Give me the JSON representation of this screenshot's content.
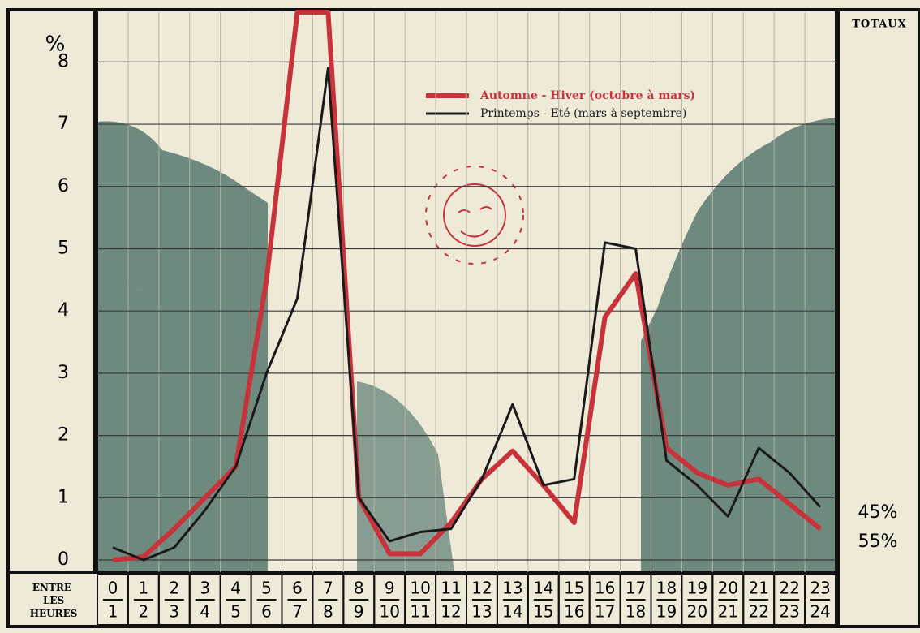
{
  "chart_data": {
    "type": "line",
    "y_label": "%",
    "x_label": "ENTRE LES HEURES",
    "totals_title": "TOTAUX",
    "categories": [
      {
        "from": "0",
        "to": "1"
      },
      {
        "from": "1",
        "to": "2"
      },
      {
        "from": "2",
        "to": "3"
      },
      {
        "from": "3",
        "to": "4"
      },
      {
        "from": "4",
        "to": "5"
      },
      {
        "from": "5",
        "to": "6"
      },
      {
        "from": "6",
        "to": "7"
      },
      {
        "from": "7",
        "to": "8"
      },
      {
        "from": "8",
        "to": "9"
      },
      {
        "from": "9",
        "to": "10"
      },
      {
        "from": "10",
        "to": "11"
      },
      {
        "from": "11",
        "to": "12"
      },
      {
        "from": "12",
        "to": "13"
      },
      {
        "from": "13",
        "to": "14"
      },
      {
        "from": "14",
        "to": "15"
      },
      {
        "from": "15",
        "to": "16"
      },
      {
        "from": "16",
        "to": "17"
      },
      {
        "from": "17",
        "to": "18"
      },
      {
        "from": "18",
        "to": "19"
      },
      {
        "from": "19",
        "to": "20"
      },
      {
        "from": "20",
        "to": "21"
      },
      {
        "from": "21",
        "to": "22"
      },
      {
        "from": "22",
        "to": "23"
      },
      {
        "from": "23",
        "to": "24"
      }
    ],
    "series": [
      {
        "name": "Automne - Hiver (octobre à mars)",
        "color": "#c8323a",
        "width": 6,
        "values": [
          0,
          0.05,
          0.5,
          1.0,
          1.5,
          4.5,
          8.8,
          8.8,
          1.0,
          0.1,
          0.1,
          0.6,
          1.3,
          1.75,
          1.2,
          0.6,
          3.9,
          4.6,
          1.8,
          1.4,
          1.2,
          1.3,
          0.9,
          0.5
        ]
      },
      {
        "name": "Printemps - Eté (mars à septembre)",
        "color": "#1a1a1a",
        "width": 3,
        "values": [
          0.2,
          0,
          0.2,
          0.8,
          1.5,
          3.0,
          4.2,
          7.9,
          1.0,
          0.3,
          0.45,
          0.5,
          1.3,
          2.5,
          1.2,
          1.3,
          5.1,
          5.0,
          1.6,
          1.2,
          0.7,
          1.8,
          1.4,
          0.85
        ]
      }
    ],
    "totals": [
      {
        "value": 45,
        "label": "45%"
      },
      {
        "value": 55,
        "label": "55%"
      }
    ],
    "ylim": [
      0,
      8.8
    ],
    "yticks": [
      0,
      1,
      2,
      3,
      4,
      5,
      6,
      7,
      8
    ],
    "grid": true
  }
}
